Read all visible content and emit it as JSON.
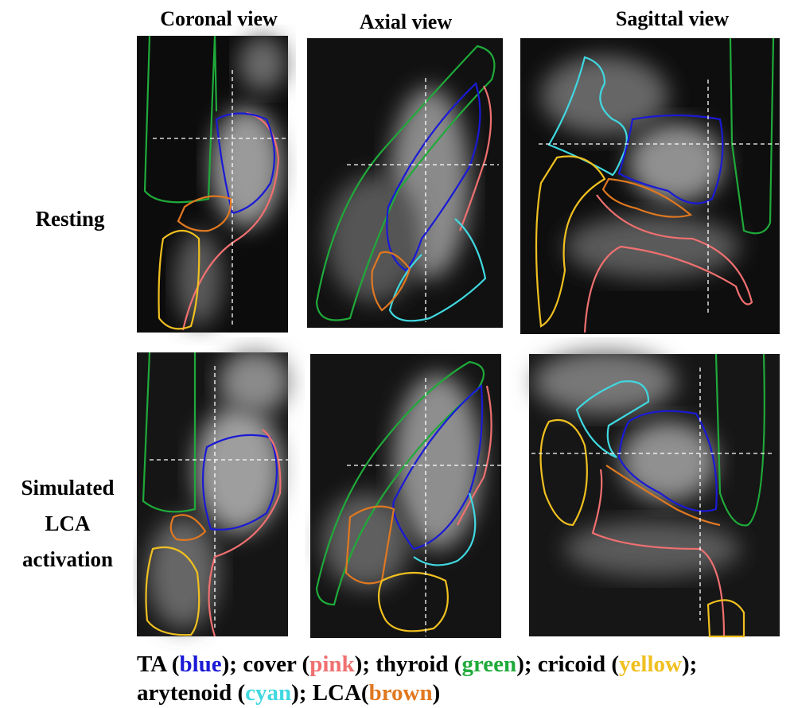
{
  "columns": [
    "Coronal view",
    "Axial view",
    "Sagittal view"
  ],
  "rows": [
    {
      "label_lines": [
        "Resting"
      ]
    },
    {
      "label_lines": [
        "Simulated",
        "LCA",
        "activation"
      ]
    }
  ],
  "legend": {
    "lines": [
      [
        {
          "text": "TA ("
        },
        {
          "text": "blue",
          "color": "#1a1ad6"
        },
        {
          "text": ");  cover ("
        },
        {
          "text": "pink",
          "color": "#f07070"
        },
        {
          "text": "); thyroid ("
        },
        {
          "text": "green",
          "color": "#1faa3a"
        },
        {
          "text": "); cricoid ("
        },
        {
          "text": "yellow",
          "color": "#f0c020"
        },
        {
          "text": ");"
        }
      ],
      [
        {
          "text": "arytenoid ("
        },
        {
          "text": "cyan",
          "color": "#40d8e0"
        },
        {
          "text": "); LCA("
        },
        {
          "text": "brown",
          "color": "#e07820"
        },
        {
          "text": ")"
        }
      ]
    ]
  }
}
